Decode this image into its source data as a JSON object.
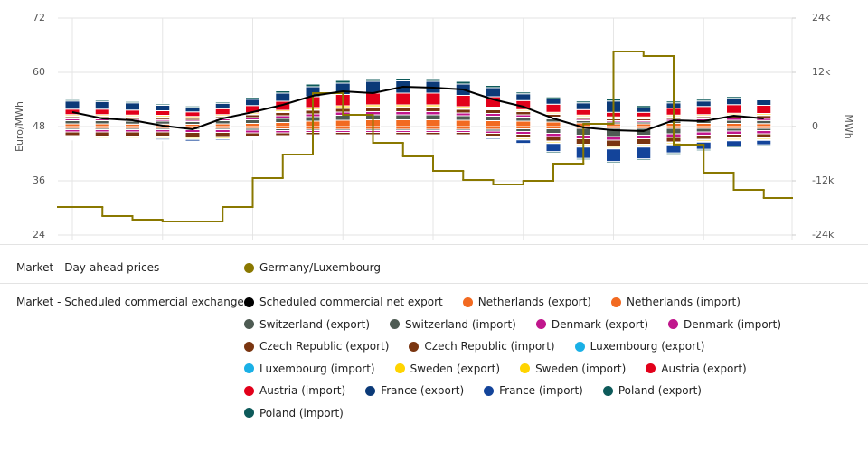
{
  "chart_data": {
    "type": "bar",
    "categories": [
      null,
      null,
      null,
      null,
      null,
      null,
      null,
      null,
      null,
      null,
      null,
      null,
      null,
      null,
      null,
      null,
      null,
      null,
      null,
      null,
      null,
      null,
      null,
      null
    ],
    "ylabel": "Euro/MWh",
    "y2label": "MWh",
    "ylim": [
      24,
      72
    ],
    "yticks": [
      24,
      36,
      48,
      60,
      72
    ],
    "y2lim": [
      -24000,
      24000
    ],
    "y2ticks": [
      {
        "value": -24000,
        "label": "-24k"
      },
      {
        "value": -12000,
        "label": "-12k"
      },
      {
        "value": 0,
        "label": "0"
      },
      {
        "value": 12000,
        "label": "12k"
      },
      {
        "value": 24000,
        "label": "24k"
      }
    ],
    "grid": true,
    "groups": [
      {
        "label": "Market - Day-ahead prices",
        "series": [
          {
            "name": "Germany/Luxembourg",
            "type": "step",
            "color": "#8a7800",
            "values": [
              30.2,
              28.2,
              27.4,
              27.0,
              27.0,
              30.2,
              36.6,
              41.8,
              55.4,
              50.6,
              44.4,
              41.4,
              38.2,
              36.2,
              35.2,
              36.0,
              39.8,
              48.6,
              64.6,
              63.6,
              44.0,
              37.8,
              34.0,
              32.2
            ]
          }
        ]
      },
      {
        "label": "Market - Scheduled commercial exchanges",
        "series": [
          {
            "name": "Scheduled commercial net export",
            "type": "line",
            "axis": "y2",
            "color": "#000000",
            "values": [
              3200,
              1800,
              1400,
              200,
              -600,
              1800,
              3200,
              4800,
              6800,
              7800,
              7400,
              8800,
              8600,
              8200,
              6000,
              4400,
              1800,
              -200,
              -800,
              -1000,
              1400,
              1200,
              2400,
              1800
            ]
          },
          {
            "name": "Netherlands (export)",
            "type": "bar",
            "axis": "y2",
            "color": "#f26a21",
            "values": [
              600,
              600,
              550,
              550,
              500,
              600,
              700,
              900,
              1200,
              1400,
              1500,
              1500,
              1500,
              1400,
              1300,
              1200,
              1000,
              800,
              600,
              600,
              700,
              700,
              700,
              650
            ]
          },
          {
            "name": "Netherlands (import)",
            "type": "bar",
            "axis": "y2",
            "color": "#f26a21",
            "values": [
              -400,
              -400,
              -400,
              -400,
              -400,
              -400,
              -400,
              -500,
              -600,
              -600,
              -600,
              -600,
              -600,
              -600,
              -600,
              -500,
              -500,
              -400,
              -400,
              -400,
              -400,
              -400,
              -400,
              -400
            ]
          },
          {
            "name": "Switzerland (export)",
            "type": "bar",
            "axis": "y2",
            "color": "#4e5b53",
            "values": [
              700,
              700,
              650,
              650,
              600,
              700,
              800,
              900,
              1000,
              1100,
              1100,
              1100,
              1100,
              1000,
              1000,
              900,
              700,
              500,
              400,
              400,
              500,
              600,
              700,
              700
            ]
          },
          {
            "name": "Switzerland (import)",
            "type": "bar",
            "axis": "y2",
            "color": "#4e5b53",
            "values": [
              -300,
              -300,
              -300,
              -300,
              -300,
              -300,
              -400,
              -400,
              -300,
              -300,
              -300,
              -300,
              -300,
              -300,
              -400,
              -600,
              -1000,
              -1500,
              -1800,
              -1500,
              -1200,
              -800,
              -600,
              -500
            ]
          },
          {
            "name": "Denmark (export)",
            "type": "bar",
            "axis": "y2",
            "color": "#c0168c",
            "values": [
              400,
              400,
              400,
              350,
              300,
              400,
              500,
              600,
              600,
              700,
              700,
              700,
              700,
              600,
              600,
              500,
              400,
              300,
              300,
              300,
              400,
              400,
              500,
              500
            ]
          },
          {
            "name": "Denmark (import)",
            "type": "bar",
            "axis": "y2",
            "color": "#c0168c",
            "values": [
              -500,
              -500,
              -500,
              -500,
              -600,
              -600,
              -600,
              -500,
              -400,
              -400,
              -400,
              -400,
              -400,
              -400,
              -500,
              -600,
              -700,
              -800,
              -800,
              -800,
              -800,
              -700,
              -700,
              -700
            ]
          },
          {
            "name": "Czech Republic (export)",
            "type": "bar",
            "axis": "y2",
            "color": "#7a3510",
            "values": [
              500,
              500,
              500,
              500,
              400,
              500,
              600,
              700,
              800,
              800,
              900,
              900,
              900,
              800,
              800,
              700,
              600,
              500,
              400,
              400,
              500,
              500,
              600,
              600
            ]
          },
          {
            "name": "Czech Republic (import)",
            "type": "bar",
            "axis": "y2",
            "color": "#7a3510",
            "values": [
              -800,
              -900,
              -900,
              -900,
              -1000,
              -900,
              -700,
              -600,
              -500,
              -500,
              -500,
              -500,
              -500,
              -500,
              -600,
              -700,
              -1000,
              -1200,
              -1300,
              -1200,
              -1000,
              -900,
              -800,
              -800
            ]
          },
          {
            "name": "Luxembourg (export)",
            "type": "bar",
            "axis": "y2",
            "color": "#1ab0e6",
            "values": [
              150,
              150,
              150,
              150,
              150,
              150,
              150,
              200,
              200,
              200,
              200,
              200,
              200,
              200,
              200,
              150,
              150,
              150,
              150,
              150,
              150,
              150,
              150,
              150
            ]
          },
          {
            "name": "Luxembourg (import)",
            "type": "bar",
            "axis": "y2",
            "color": "#1ab0e6",
            "values": [
              -150,
              -150,
              -150,
              -150,
              -150,
              -150,
              -150,
              -150,
              -150,
              -150,
              -150,
              -150,
              -150,
              -150,
              -150,
              -150,
              -150,
              -150,
              -150,
              -150,
              -150,
              -150,
              -150,
              -150
            ]
          },
          {
            "name": "Sweden (export)",
            "type": "bar",
            "axis": "y2",
            "color": "#ffd400",
            "values": [
              300,
              300,
              300,
              300,
              300,
              300,
              300,
              300,
              400,
              400,
              400,
              400,
              400,
              400,
              400,
              300,
              300,
              300,
              300,
              300,
              300,
              300,
              300,
              300
            ]
          },
          {
            "name": "Sweden (import)",
            "type": "bar",
            "axis": "y2",
            "color": "#ffd400",
            "values": [
              -300,
              -300,
              -300,
              -300,
              -300,
              -300,
              -200,
              -200,
              -200,
              -200,
              -200,
              -200,
              -200,
              -200,
              -200,
              -300,
              -300,
              -300,
              -300,
              -300,
              -300,
              -300,
              -300,
              -300
            ]
          },
          {
            "name": "Austria (export)",
            "type": "bar",
            "axis": "y2",
            "color": "#e2001a",
            "values": [
              1200,
              1200,
              1100,
              1000,
              1000,
              1300,
              1600,
              2000,
              2400,
              2500,
              2600,
              2600,
              2600,
              2500,
              2300,
              2000,
              1800,
              1200,
              1000,
              1000,
              1500,
              1800,
              1900,
              1800
            ]
          },
          {
            "name": "Austria (import)",
            "type": "bar",
            "axis": "y2",
            "color": "#e2001a",
            "values": [
              -100,
              -100,
              -100,
              -100,
              -100,
              -100,
              -100,
              -100,
              -100,
              -100,
              -100,
              -100,
              -100,
              -100,
              -100,
              -100,
              -100,
              -200,
              -200,
              -200,
              -200,
              -200,
              -200,
              -200
            ]
          },
          {
            "name": "France (export)",
            "type": "bar",
            "axis": "y2",
            "color": "#0b3a78",
            "values": [
              1800,
              1700,
              1600,
              1200,
              1000,
              1200,
              1400,
              1800,
              2200,
              2500,
              2600,
              2700,
              2600,
              2500,
              2000,
              1500,
              1200,
              1500,
              2500,
              1000,
              1200,
              1200,
              1400,
              1200
            ]
          },
          {
            "name": "France (import)",
            "type": "bar",
            "axis": "y2",
            "color": "#13449a",
            "values": [
              -200,
              -200,
              -200,
              -300,
              -400,
              -300,
              -200,
              -200,
              -200,
              -200,
              -200,
              -200,
              -200,
              -200,
              -300,
              -800,
              -1800,
              -2500,
              -2800,
              -2600,
              -1800,
              -1600,
              -1200,
              -1000
            ]
          },
          {
            "name": "Poland (export)",
            "type": "bar",
            "axis": "y2",
            "color": "#0d5a5a",
            "values": [
              300,
              300,
              300,
              300,
              300,
              300,
              400,
              500,
              600,
              600,
              600,
              600,
              600,
              600,
              500,
              400,
              400,
              400,
              500,
              500,
              400,
              400,
              400,
              400
            ]
          },
          {
            "name": "Poland (import)",
            "type": "bar",
            "axis": "y2",
            "color": "#0d5a5a",
            "values": [
              -200,
              -200,
              -200,
              -200,
              -200,
              -200,
              -200,
              -200,
              -200,
              -200,
              -200,
              -200,
              -200,
              -200,
              -200,
              -200,
              -300,
              -300,
              -300,
              -300,
              -300,
              -300,
              -300,
              -300
            ]
          }
        ]
      }
    ]
  }
}
